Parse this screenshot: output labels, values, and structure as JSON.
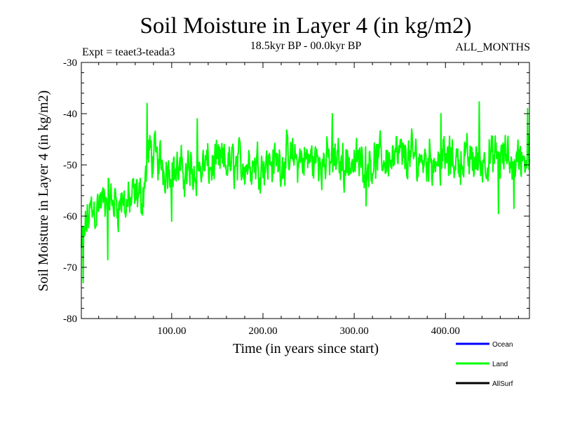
{
  "chart_data": {
    "type": "line",
    "title": "Soil Moisture in Layer 4 (in kg/m2)",
    "subtitle": "18.5kyr BP - 00.0kyr BP",
    "experiment": "Expt = teaet3-teada3",
    "season": "ALL_MONTHS",
    "xlabel": "Time (in years since start)",
    "ylabel": "Soil Moisture in Layer 4 (in kg/m2)",
    "xlim": [
      1,
      492
    ],
    "ylim": [
      -80,
      -30
    ],
    "x_ticks": [
      100,
      200,
      300,
      400
    ],
    "x_tick_labels": [
      "100.00",
      "200.00",
      "300.00",
      "400.00"
    ],
    "y_ticks": [
      -30,
      -40,
      -50,
      -60,
      -70,
      -80
    ],
    "y_tick_labels": [
      "-30",
      "-40",
      "-50",
      "-60",
      "-70",
      "-80"
    ],
    "grid": false,
    "legend": [
      {
        "name": "Ocean",
        "color": "#0000ff"
      },
      {
        "name": "Land",
        "color": "#00ff00"
      },
      {
        "name": "AllSurf",
        "color": "#000000"
      }
    ],
    "series": [
      {
        "name": "Land",
        "color": "#00ff00",
        "x_start": 1,
        "x_step": 0.5,
        "trend_x": [
          1,
          10,
          30,
          50,
          68,
          75,
          90,
          110,
          150,
          200,
          250,
          300,
          350,
          400,
          450,
          492
        ],
        "trend_y": [
          -66,
          -59,
          -57,
          -57.5,
          -56,
          -47.5,
          -50,
          -51.5,
          -50,
          -49.5,
          -49,
          -49.5,
          -48.5,
          -49,
          -49,
          -48.5
        ],
        "noise_amplitude": 9,
        "peaks": [
          {
            "x": 73,
            "y": -38
          },
          {
            "x": 437,
            "y": -37.7
          },
          {
            "x": 490,
            "y": -39
          },
          {
            "x": 128,
            "y": -41
          },
          {
            "x": 276,
            "y": -40
          },
          {
            "x": 395,
            "y": -40
          }
        ],
        "troughs": [
          {
            "x": 3,
            "y": -73
          },
          {
            "x": 30,
            "y": -68.5
          },
          {
            "x": 100,
            "y": -61
          },
          {
            "x": 313,
            "y": -58
          },
          {
            "x": 458,
            "y": -59.5
          },
          {
            "x": 475,
            "y": -58.5
          }
        ]
      }
    ]
  }
}
